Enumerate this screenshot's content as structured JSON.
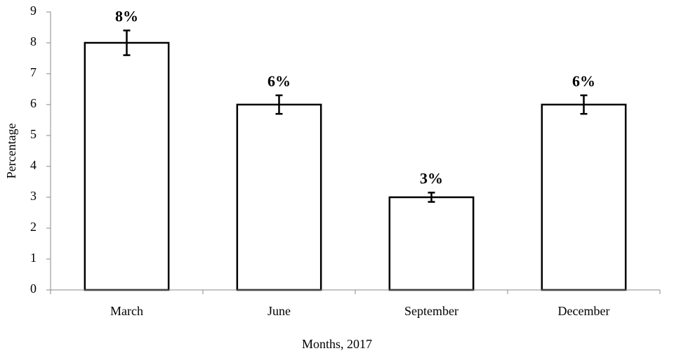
{
  "chart_data": {
    "type": "bar",
    "categories": [
      "March",
      "June",
      "September",
      "December"
    ],
    "values": [
      8,
      6,
      3,
      6
    ],
    "errors": [
      0.4,
      0.3,
      0.15,
      0.3
    ],
    "value_labels": [
      "8%",
      "6%",
      "3%",
      "6%"
    ],
    "color": "#ffffff",
    "x_label": "Months, 2017",
    "y_label": "Percentage",
    "ylim": [
      0,
      9
    ],
    "yticks": [
      0,
      1,
      2,
      3,
      4,
      5,
      6,
      7,
      8,
      9
    ],
    "grid": false
  }
}
